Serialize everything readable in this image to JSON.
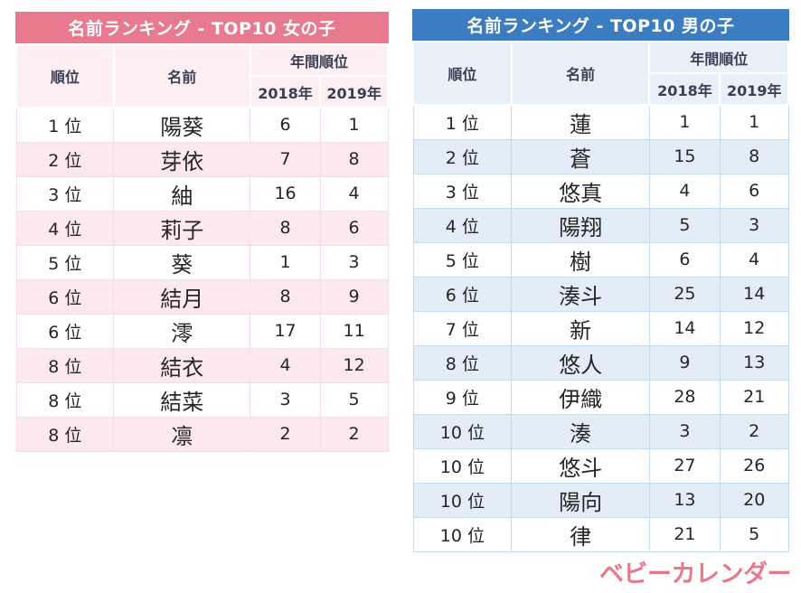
{
  "chart_data": [
    {
      "type": "table",
      "id": "girls",
      "title": "名前ランキング - TOP10 女の子",
      "theme": {
        "title_bg": "#e87a8f",
        "header_bg": "#fdeef1",
        "alt_row_bg": "#fce9ed",
        "border": "#f7dce3",
        "title_text": "#ffffff"
      },
      "columns": {
        "rank": "順位",
        "name": "名前",
        "annual": "年間順位",
        "y2018": "2018年",
        "y2019": "2019年"
      },
      "rows": [
        {
          "rank": "1 位",
          "name": "陽葵",
          "y2018": "6",
          "y2019": "1"
        },
        {
          "rank": "2 位",
          "name": "芽依",
          "y2018": "7",
          "y2019": "8"
        },
        {
          "rank": "3 位",
          "name": "紬",
          "y2018": "16",
          "y2019": "4"
        },
        {
          "rank": "4 位",
          "name": "莉子",
          "y2018": "8",
          "y2019": "6"
        },
        {
          "rank": "5 位",
          "name": "葵",
          "y2018": "1",
          "y2019": "3"
        },
        {
          "rank": "6 位",
          "name": "結月",
          "y2018": "8",
          "y2019": "9"
        },
        {
          "rank": "6 位",
          "name": "澪",
          "y2018": "17",
          "y2019": "11"
        },
        {
          "rank": "8 位",
          "name": "結衣",
          "y2018": "4",
          "y2019": "12"
        },
        {
          "rank": "8 位",
          "name": "結菜",
          "y2018": "3",
          "y2019": "5"
        },
        {
          "rank": "8 位",
          "name": "凛",
          "y2018": "2",
          "y2019": "2"
        }
      ]
    },
    {
      "type": "table",
      "id": "boys",
      "title": "名前ランキング - TOP10 男の子",
      "theme": {
        "title_bg": "#3c7dc1",
        "header_bg": "#e9f1f8",
        "alt_row_bg": "#e2edf7",
        "border": "#c9dcee",
        "title_text": "#ffffff"
      },
      "columns": {
        "rank": "順位",
        "name": "名前",
        "annual": "年間順位",
        "y2018": "2018年",
        "y2019": "2019年"
      },
      "rows": [
        {
          "rank": "1 位",
          "name": "蓮",
          "y2018": "1",
          "y2019": "1"
        },
        {
          "rank": "2 位",
          "name": "蒼",
          "y2018": "15",
          "y2019": "8"
        },
        {
          "rank": "3 位",
          "name": "悠真",
          "y2018": "4",
          "y2019": "6"
        },
        {
          "rank": "4 位",
          "name": "陽翔",
          "y2018": "5",
          "y2019": "3"
        },
        {
          "rank": "5 位",
          "name": "樹",
          "y2018": "6",
          "y2019": "4"
        },
        {
          "rank": "6 位",
          "name": "湊斗",
          "y2018": "25",
          "y2019": "14"
        },
        {
          "rank": "7 位",
          "name": "新",
          "y2018": "14",
          "y2019": "12"
        },
        {
          "rank": "8 位",
          "name": "悠人",
          "y2018": "9",
          "y2019": "13"
        },
        {
          "rank": "9 位",
          "name": "伊織",
          "y2018": "28",
          "y2019": "21"
        },
        {
          "rank": "10 位",
          "name": "湊",
          "y2018": "3",
          "y2019": "2"
        },
        {
          "rank": "10 位",
          "name": "悠斗",
          "y2018": "27",
          "y2019": "26"
        },
        {
          "rank": "10 位",
          "name": "陽向",
          "y2018": "13",
          "y2019": "20"
        },
        {
          "rank": "10 位",
          "name": "律",
          "y2018": "21",
          "y2019": "5"
        }
      ]
    }
  ],
  "logo": {
    "text": "ベビーカレンダー",
    "color": "#e8798c"
  }
}
